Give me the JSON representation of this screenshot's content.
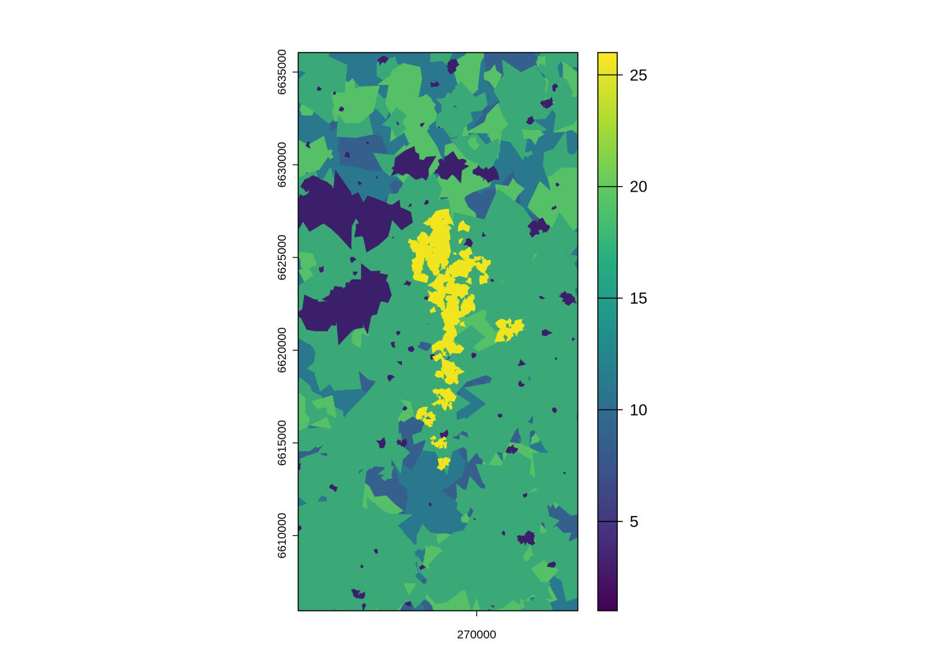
{
  "map": {
    "type": "raster",
    "x_axis": {
      "ticks": [
        {
          "value": 270000,
          "label": "270000"
        }
      ]
    },
    "y_axis": {
      "ticks": [
        {
          "value": 6610000,
          "label": "6610000"
        },
        {
          "value": 6615000,
          "label": "6615000"
        },
        {
          "value": 6620000,
          "label": "6620000"
        },
        {
          "value": 6625000,
          "label": "6625000"
        },
        {
          "value": 6630000,
          "label": "6630000"
        },
        {
          "value": 6635000,
          "label": "6635000"
        }
      ]
    },
    "extent": {
      "xmin": 260300,
      "xmax": 275500,
      "ymin": 6605950,
      "ymax": 6636050
    },
    "colorbar": {
      "range": [
        1,
        26
      ],
      "ticks": [
        {
          "value": 5,
          "label": "5"
        },
        {
          "value": 10,
          "label": "10"
        },
        {
          "value": 15,
          "label": "15"
        },
        {
          "value": 20,
          "label": "20"
        },
        {
          "value": 25,
          "label": "25"
        }
      ],
      "palette": [
        "#440154",
        "#472d7b",
        "#3b528b",
        "#2c728e",
        "#21908c",
        "#27ad81",
        "#5dc863",
        "#aadc32",
        "#fde725"
      ]
    },
    "colors": {
      "background_class": "#2a788e",
      "dark_class": "#3c1f6b",
      "green_class": "#3aa977",
      "bright_green_class": "#55c068",
      "urban_class": "#f0e51e",
      "blue_class": "#35608d"
    }
  }
}
